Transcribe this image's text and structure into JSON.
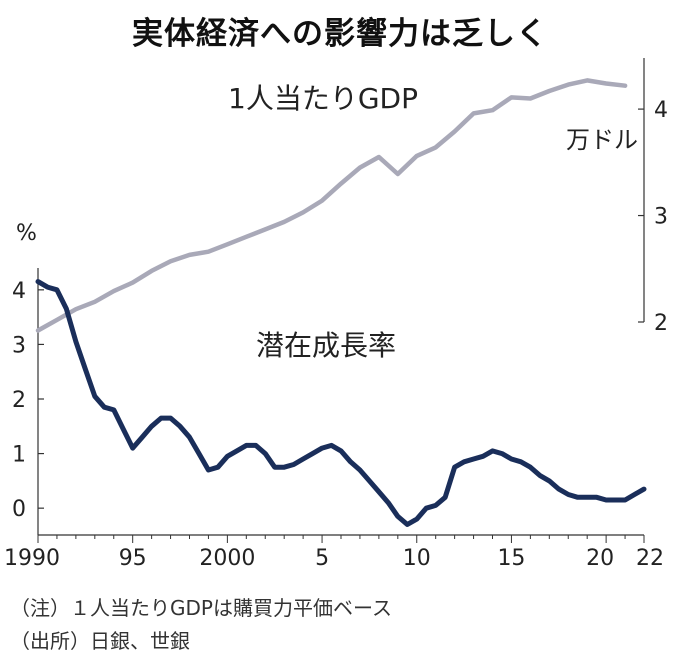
{
  "title": "実体経済への影響力は乏しく",
  "notes": {
    "note1": "（注）１人当たりGDPは購買力平価ベース",
    "note2": "（出所）日銀、世銀"
  },
  "chart_data": {
    "type": "line",
    "x_tick_labels": [
      "1990",
      "95",
      "2000",
      "5",
      "10",
      "15",
      "20",
      "22"
    ],
    "x_tick_years": [
      1990,
      1995,
      2000,
      2005,
      2010,
      2015,
      2020,
      2022
    ],
    "xlim": [
      1990,
      2022
    ],
    "y_left": {
      "unit": "%",
      "ticks": [
        0,
        1,
        2,
        3,
        4
      ],
      "ylim": [
        -0.4,
        4.4
      ]
    },
    "y_right": {
      "unit": "万ドル",
      "ticks": [
        2,
        3,
        4
      ],
      "ylim": [
        2.0,
        4.48
      ]
    },
    "grid": false,
    "series": [
      {
        "name": "1人当たりGDP",
        "axis": "right",
        "color": "#a9a9b8",
        "x": [
          1990,
          1991,
          1992,
          1993,
          1994,
          1995,
          1996,
          1997,
          1998,
          1999,
          2000,
          2001,
          2002,
          2003,
          2004,
          2005,
          2006,
          2007,
          2008,
          2009,
          2010,
          2011,
          2012,
          2013,
          2014,
          2015,
          2016,
          2017,
          2018,
          2019,
          2020,
          2021
        ],
        "values": [
          1.92,
          2.02,
          2.12,
          2.19,
          2.29,
          2.37,
          2.48,
          2.57,
          2.63,
          2.66,
          2.73,
          2.8,
          2.87,
          2.94,
          3.03,
          3.14,
          3.3,
          3.45,
          3.55,
          3.39,
          3.56,
          3.64,
          3.79,
          3.96,
          3.99,
          4.11,
          4.1,
          4.17,
          4.23,
          4.27,
          4.24,
          4.22
        ]
      },
      {
        "name": "潜在成長率",
        "axis": "left",
        "color": "#1a2e5a",
        "x": [
          1990,
          1990.5,
          1991,
          1991.5,
          1992,
          1992.5,
          1993,
          1993.5,
          1994,
          1994.5,
          1995,
          1995.5,
          1996,
          1996.5,
          1997,
          1997.5,
          1998,
          1998.5,
          1999,
          1999.5,
          2000,
          2000.5,
          2001,
          2001.5,
          2002,
          2002.5,
          2003,
          2003.5,
          2004,
          2004.5,
          2005,
          2005.5,
          2006,
          2006.5,
          2007,
          2007.5,
          2008,
          2008.5,
          2009,
          2009.5,
          2010,
          2010.5,
          2011,
          2011.5,
          2012,
          2012.5,
          2013,
          2013.5,
          2014,
          2014.5,
          2015,
          2015.5,
          2016,
          2016.5,
          2017,
          2017.5,
          2018,
          2018.5,
          2019,
          2019.5,
          2020,
          2020.5,
          2021,
          2021.5,
          2022
        ],
        "values": [
          4.15,
          4.05,
          4.0,
          3.65,
          3.05,
          2.55,
          2.05,
          1.85,
          1.8,
          1.45,
          1.1,
          1.3,
          1.5,
          1.65,
          1.65,
          1.5,
          1.3,
          1.0,
          0.7,
          0.75,
          0.95,
          1.05,
          1.15,
          1.15,
          1.0,
          0.75,
          0.75,
          0.8,
          0.9,
          1.0,
          1.1,
          1.15,
          1.05,
          0.85,
          0.7,
          0.5,
          0.3,
          0.1,
          -0.15,
          -0.3,
          -0.2,
          0.0,
          0.05,
          0.2,
          0.75,
          0.85,
          0.9,
          0.95,
          1.05,
          1.0,
          0.9,
          0.85,
          0.75,
          0.6,
          0.5,
          0.35,
          0.25,
          0.2,
          0.2,
          0.2,
          0.15,
          0.15,
          0.15,
          0.25,
          0.35
        ]
      }
    ]
  }
}
